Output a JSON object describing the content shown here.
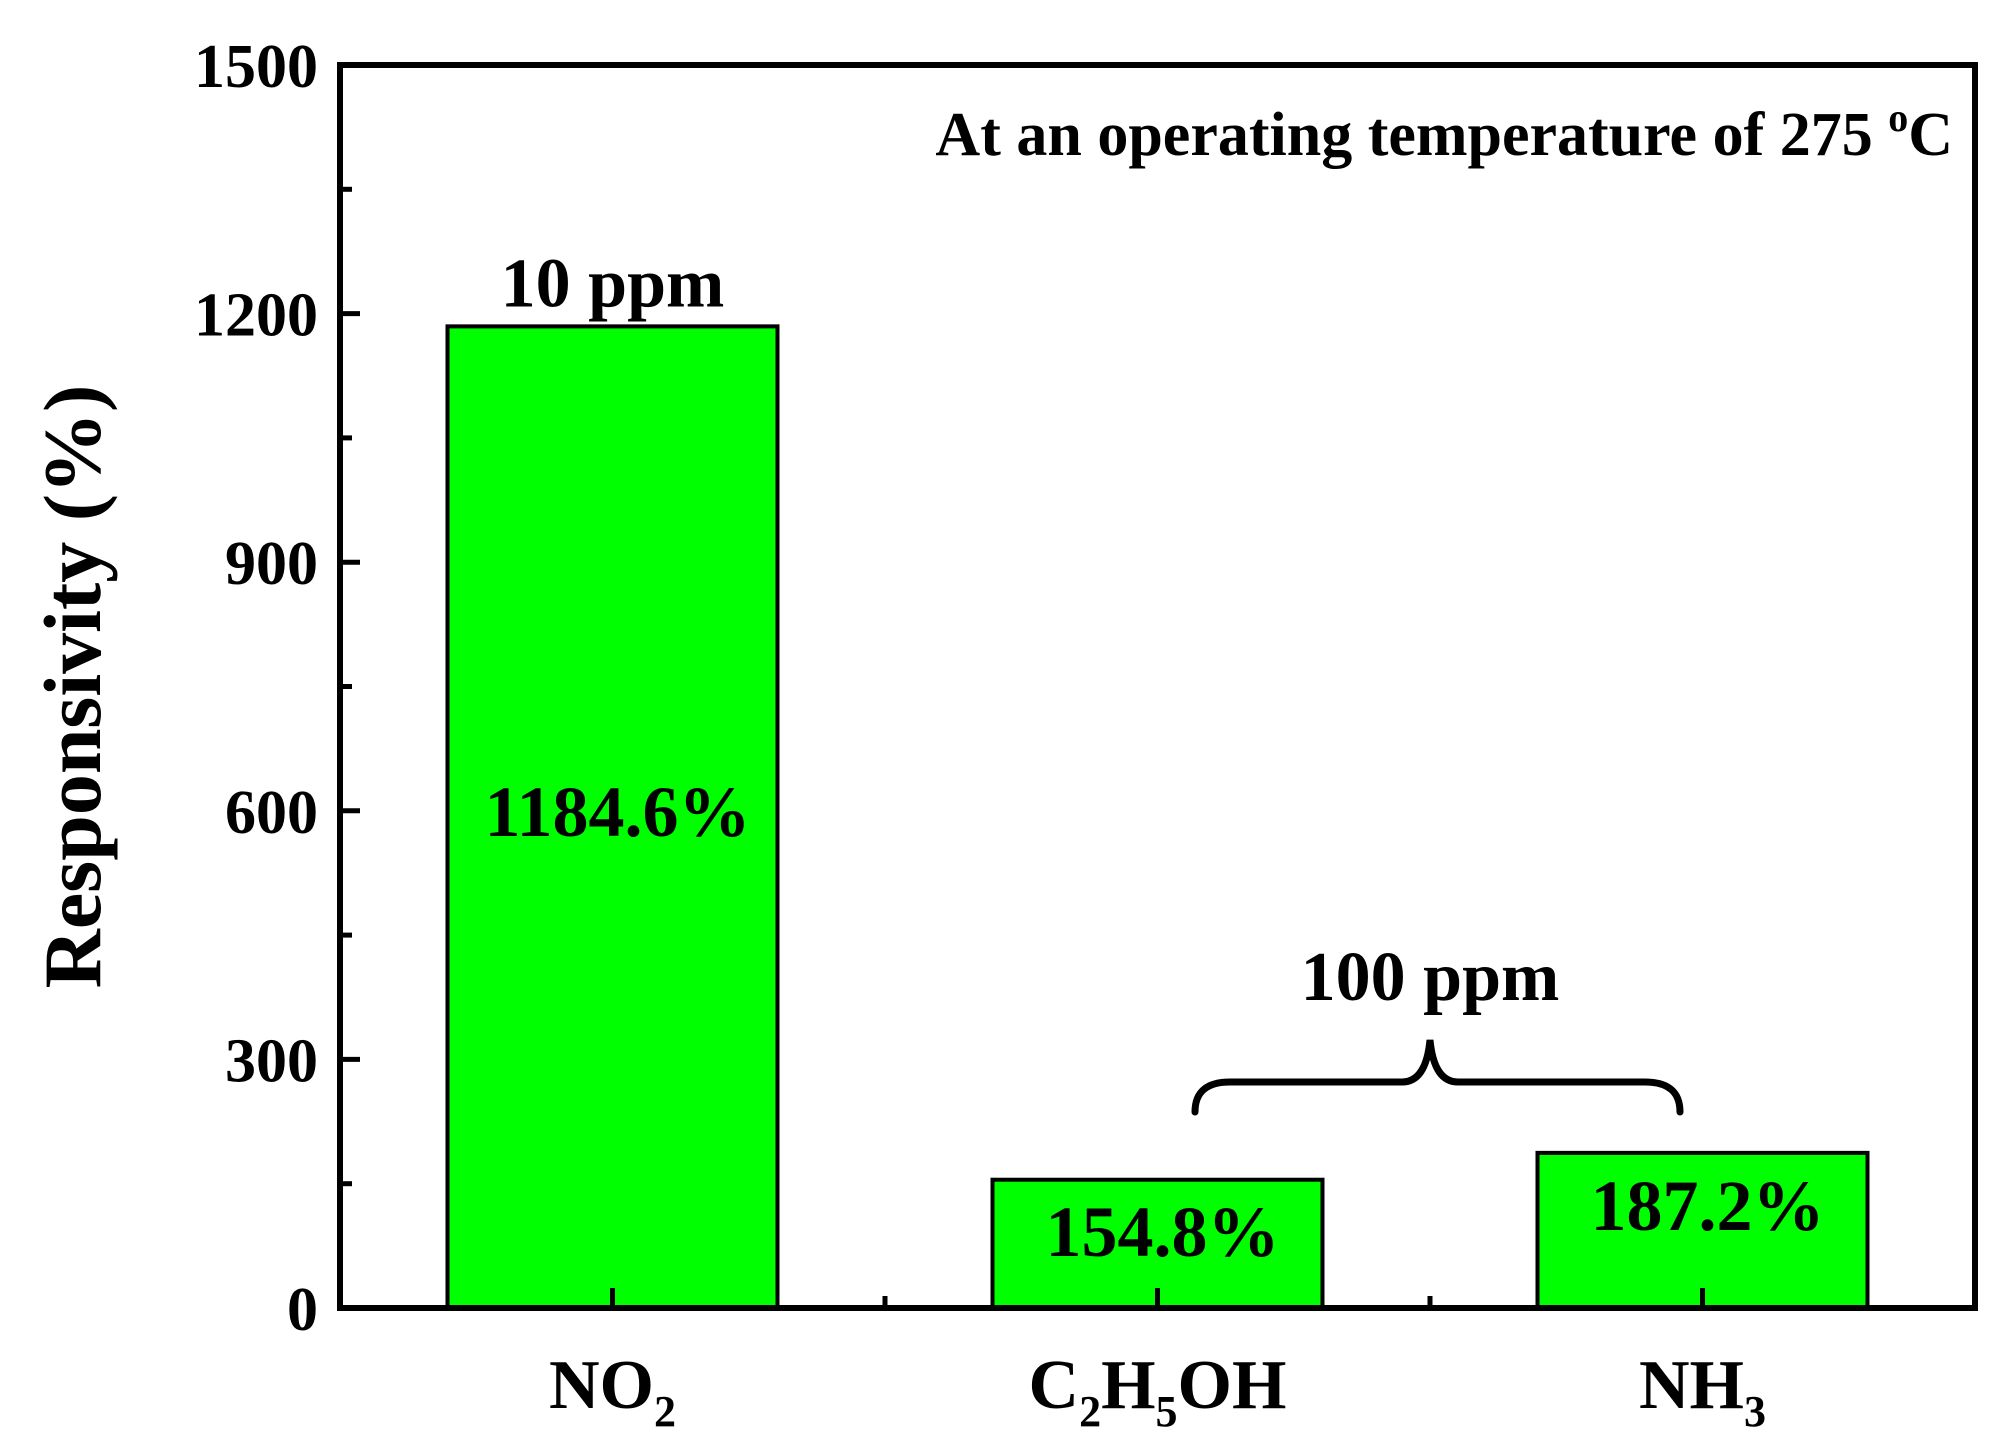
{
  "chart_data": {
    "type": "bar",
    "categories": [
      {
        "base": "NO",
        "sub": "2",
        "tail": ""
      },
      {
        "parts": [
          {
            "t": "C"
          },
          {
            "t": "2",
            "sub": true
          },
          {
            "t": "H"
          },
          {
            "t": "5",
            "sub": true
          },
          {
            "t": "OH"
          }
        ]
      },
      {
        "base": "NH",
        "sub": "3",
        "tail": ""
      }
    ],
    "values": [
      1184.6,
      154.8,
      187.2
    ],
    "value_labels": [
      "1184.6%",
      "154.8%",
      "187.2%"
    ],
    "bar_color": "#00ff00",
    "ylabel": "Responsivity (%)",
    "xlabel": "",
    "title": "",
    "ylim": [
      0,
      1500
    ],
    "y_ticks": [
      0,
      300,
      600,
      900,
      1200,
      1500
    ],
    "y_tick_labels": [
      "0",
      "300",
      "600",
      "900",
      "1200",
      "1500"
    ],
    "annotation": {
      "text": "At an operating temperature of 275 ",
      "sup": "o",
      "tail": "C"
    },
    "group_labels": {
      "single": "10 ppm",
      "pair": "100 ppm"
    },
    "grid": false
  }
}
